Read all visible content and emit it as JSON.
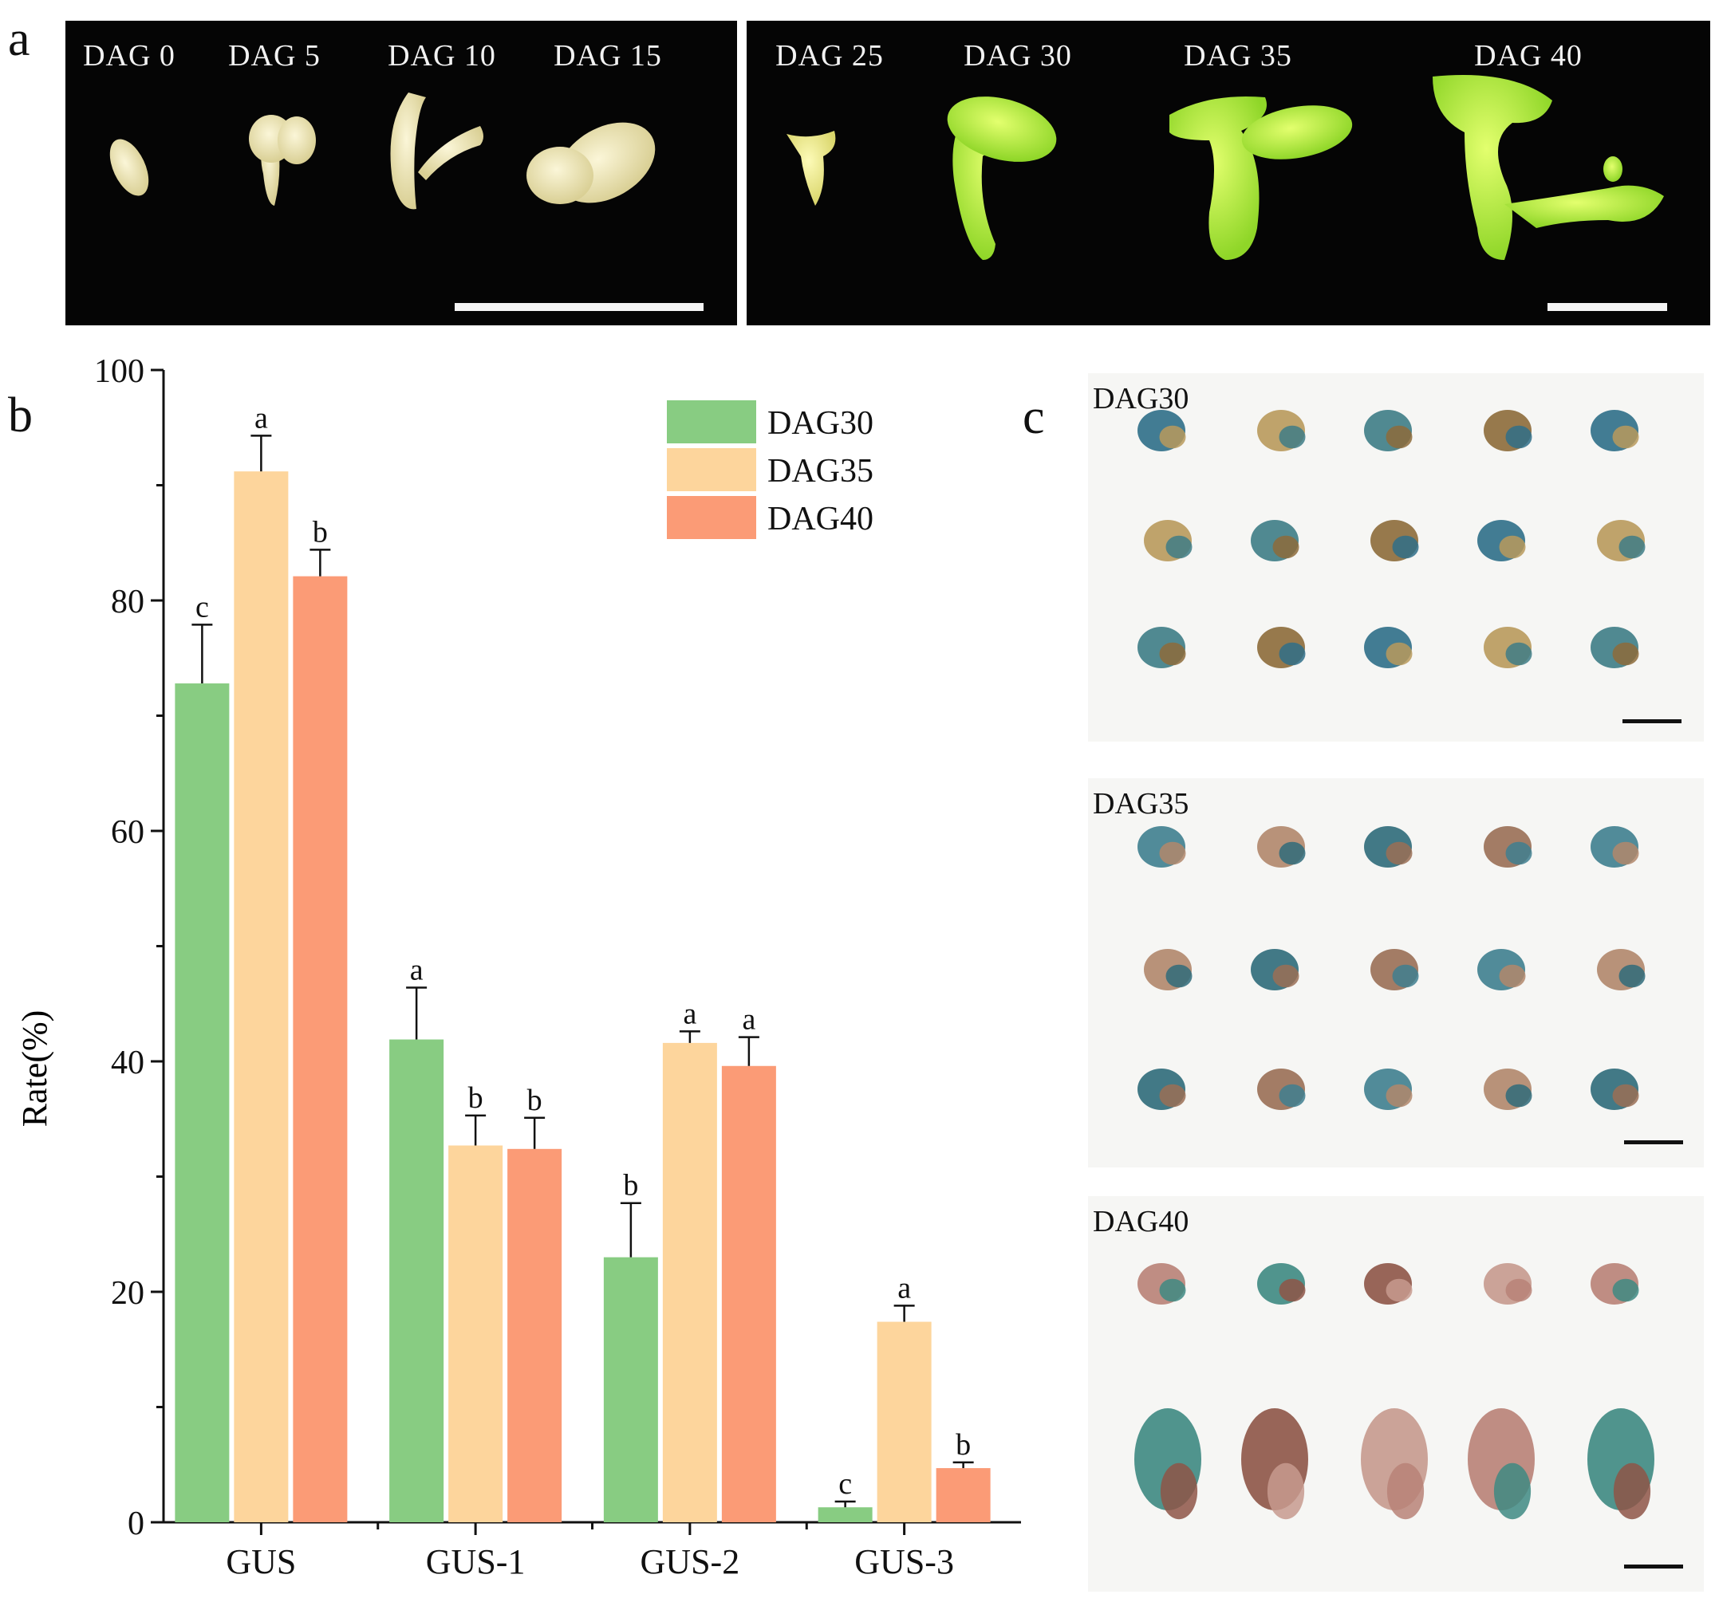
{
  "panel_a": {
    "letter": "a",
    "stage_labels": [
      "DAG 0",
      "DAG 5",
      "DAG 10",
      "DAG 15",
      "DAG 25",
      "DAG 30",
      "DAG 35",
      "DAG 40"
    ]
  },
  "panel_b": {
    "letter": "b"
  },
  "panel_c": {
    "letter": "c",
    "photos": [
      {
        "label": "DAG30"
      },
      {
        "label": "DAG35"
      },
      {
        "label": "DAG40"
      }
    ]
  },
  "colors": {
    "DAG30": "#88cc82",
    "DAG35": "#fdd59c",
    "DAG40": "#fb9b76"
  },
  "chart_data": {
    "type": "bar",
    "title": "",
    "xlabel": "",
    "ylabel": "Rate(%)",
    "ylim": [
      0,
      100
    ],
    "yticks": [
      0,
      20,
      40,
      60,
      80,
      100
    ],
    "categories": [
      "GUS",
      "GUS-1",
      "GUS-2",
      "GUS-3"
    ],
    "legend_position": "top-right",
    "grid": false,
    "series": [
      {
        "name": "DAG30",
        "color": "#88cc82",
        "values": [
          72.8,
          41.9,
          23.0,
          1.3
        ],
        "errors": [
          5.1,
          4.5,
          4.7,
          0.5
        ],
        "letters": [
          "c",
          "a",
          "b",
          "c"
        ]
      },
      {
        "name": "DAG35",
        "color": "#fdd59c",
        "values": [
          91.2,
          32.7,
          41.6,
          17.4
        ],
        "errors": [
          3.1,
          2.6,
          1.0,
          1.4
        ],
        "letters": [
          "a",
          "b",
          "a",
          "a"
        ]
      },
      {
        "name": "DAG40",
        "color": "#fb9b76",
        "values": [
          82.1,
          32.4,
          39.6,
          4.7
        ],
        "errors": [
          2.3,
          2.7,
          2.5,
          0.5
        ],
        "letters": [
          "b",
          "b",
          "a",
          "b"
        ]
      }
    ]
  }
}
